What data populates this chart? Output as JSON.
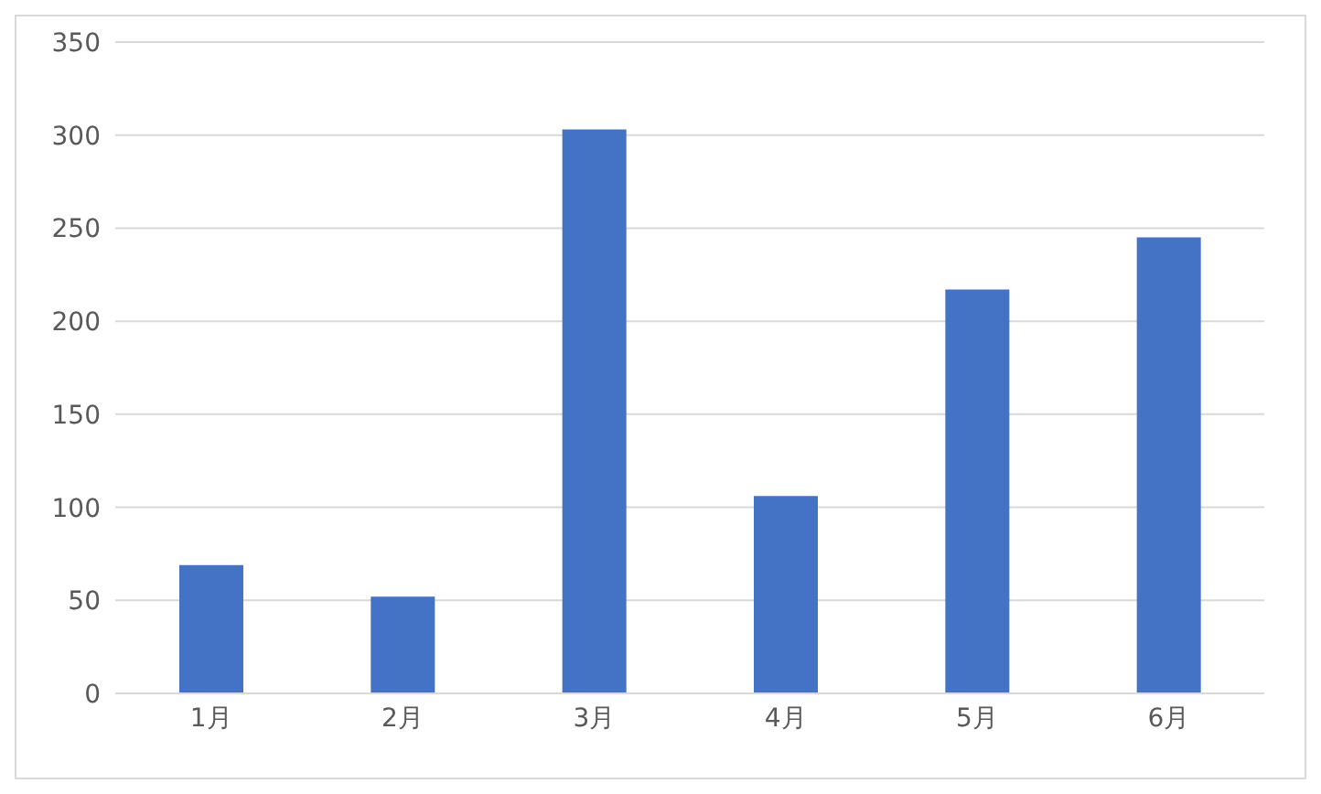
{
  "chart_data": {
    "type": "bar",
    "categories": [
      "1月",
      "2月",
      "3月",
      "4月",
      "5月",
      "6月"
    ],
    "values": [
      69,
      52,
      303,
      106,
      217,
      245
    ],
    "color": "#4472c4",
    "ylim": [
      0,
      350
    ],
    "yticks": [
      0,
      50,
      100,
      150,
      200,
      250,
      300,
      350
    ],
    "grid": "y"
  }
}
